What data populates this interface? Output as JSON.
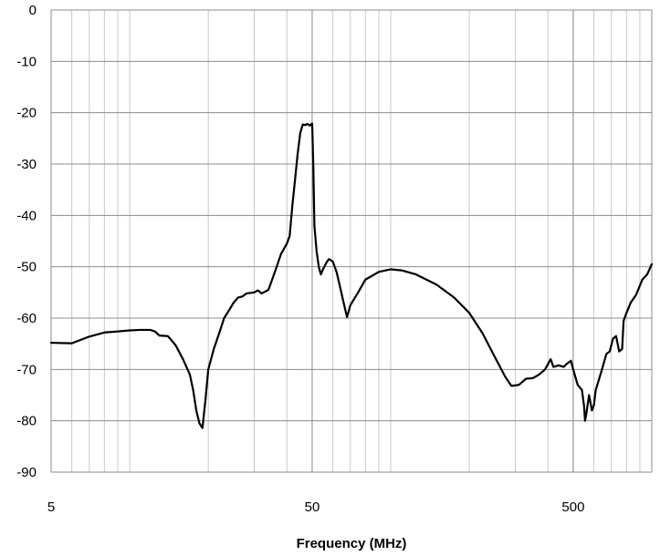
{
  "chart_data": {
    "type": "line",
    "title": "",
    "xlabel": "Frequency (MHz)",
    "ylabel": "",
    "x_scale": "log",
    "xlim": [
      5,
      1000
    ],
    "ylim": [
      -90,
      0
    ],
    "x_ticks": [
      {
        "value": 5,
        "label": "5"
      },
      {
        "value": 50,
        "label": "50"
      },
      {
        "value": 500,
        "label": "500"
      }
    ],
    "y_ticks": [
      {
        "value": 0,
        "label": "0"
      },
      {
        "value": -10,
        "label": "-10"
      },
      {
        "value": -20,
        "label": "-20"
      },
      {
        "value": -30,
        "label": "-30"
      },
      {
        "value": -40,
        "label": "-40"
      },
      {
        "value": -50,
        "label": "-50"
      },
      {
        "value": -60,
        "label": "-60"
      },
      {
        "value": -70,
        "label": "-70"
      },
      {
        "value": -80,
        "label": "-80"
      },
      {
        "value": -90,
        "label": "-90"
      }
    ],
    "grid": true,
    "legend": "none",
    "series": [
      {
        "color": "#000000",
        "points": [
          [
            5,
            -64.8
          ],
          [
            6,
            -64.9
          ],
          [
            7,
            -63.6
          ],
          [
            8,
            -62.8
          ],
          [
            9,
            -62.6
          ],
          [
            10,
            -62.4
          ],
          [
            11,
            -62.3
          ],
          [
            12,
            -62.3
          ],
          [
            12.5,
            -62.6
          ],
          [
            13,
            -63.4
          ],
          [
            14,
            -63.5
          ],
          [
            15,
            -65.3
          ],
          [
            16,
            -68
          ],
          [
            17,
            -71
          ],
          [
            17.5,
            -74
          ],
          [
            18,
            -78
          ],
          [
            18.5,
            -80.5
          ],
          [
            19,
            -81.4
          ],
          [
            19.5,
            -76
          ],
          [
            20,
            -70
          ],
          [
            21,
            -66
          ],
          [
            22,
            -63
          ],
          [
            23,
            -60
          ],
          [
            24,
            -58.5
          ],
          [
            25,
            -57
          ],
          [
            26,
            -56
          ],
          [
            27,
            -55.8
          ],
          [
            28,
            -55.2
          ],
          [
            30,
            -55
          ],
          [
            31,
            -54.6
          ],
          [
            32,
            -55.2
          ],
          [
            34,
            -54.5
          ],
          [
            36,
            -51
          ],
          [
            38,
            -47.5
          ],
          [
            40,
            -45.5
          ],
          [
            41,
            -44
          ],
          [
            42,
            -38
          ],
          [
            43,
            -33
          ],
          [
            44,
            -28
          ],
          [
            45,
            -24
          ],
          [
            46,
            -22.3
          ],
          [
            47,
            -22.4
          ],
          [
            48,
            -22.2
          ],
          [
            49,
            -22.5
          ],
          [
            50,
            -22.1
          ],
          [
            50.5,
            -30
          ],
          [
            51,
            -42
          ],
          [
            52,
            -47
          ],
          [
            53,
            -50
          ],
          [
            54,
            -51.5
          ],
          [
            55,
            -50.5
          ],
          [
            57,
            -49
          ],
          [
            58,
            -48.5
          ],
          [
            60,
            -49
          ],
          [
            62,
            -51
          ],
          [
            64,
            -54
          ],
          [
            66,
            -57
          ],
          [
            68,
            -59.8
          ],
          [
            70,
            -57.5
          ],
          [
            75,
            -55
          ],
          [
            80,
            -52.5
          ],
          [
            90,
            -51
          ],
          [
            100,
            -50.5
          ],
          [
            110,
            -50.7
          ],
          [
            125,
            -51.5
          ],
          [
            150,
            -53.5
          ],
          [
            175,
            -56
          ],
          [
            200,
            -59
          ],
          [
            225,
            -63
          ],
          [
            250,
            -67.5
          ],
          [
            275,
            -71.5
          ],
          [
            290,
            -73.2
          ],
          [
            310,
            -73
          ],
          [
            330,
            -71.8
          ],
          [
            350,
            -71.7
          ],
          [
            370,
            -71
          ],
          [
            390,
            -70
          ],
          [
            410,
            -68
          ],
          [
            420,
            -69.5
          ],
          [
            440,
            -69.2
          ],
          [
            460,
            -69.5
          ],
          [
            470,
            -69
          ],
          [
            490,
            -68.3
          ],
          [
            500,
            -70
          ],
          [
            520,
            -73
          ],
          [
            540,
            -74
          ],
          [
            550,
            -77
          ],
          [
            555,
            -80
          ],
          [
            560,
            -79
          ],
          [
            575,
            -75
          ],
          [
            590,
            -78
          ],
          [
            600,
            -77
          ],
          [
            610,
            -74
          ],
          [
            640,
            -70.5
          ],
          [
            670,
            -67
          ],
          [
            690,
            -66.5
          ],
          [
            710,
            -64
          ],
          [
            730,
            -63.5
          ],
          [
            750,
            -66.5
          ],
          [
            770,
            -66
          ],
          [
            780,
            -60.5
          ],
          [
            800,
            -59
          ],
          [
            830,
            -57
          ],
          [
            870,
            -55.5
          ],
          [
            920,
            -52.5
          ],
          [
            960,
            -51.5
          ],
          [
            1000,
            -49.5
          ]
        ]
      }
    ]
  }
}
